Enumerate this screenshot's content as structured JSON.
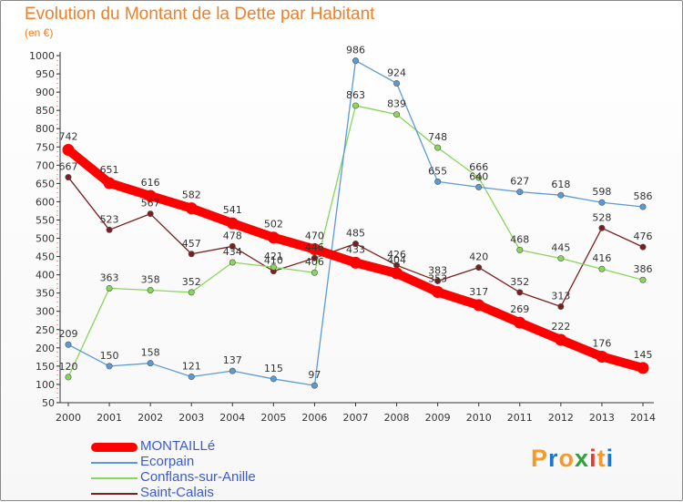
{
  "header": {
    "title": "Evolution du Montant de la Dette par Habitant",
    "unit": "(en €)"
  },
  "logo": {
    "text": "Proxiti",
    "colors": [
      "#f29a2e",
      "#1d76c9",
      "#f29a2e",
      "#2aa33b",
      "#e53a34",
      "#f29a2e",
      "#1d76c9"
    ]
  },
  "chart_data": {
    "type": "line",
    "title": "Evolution du Montant de la Dette par Habitant",
    "ylabel": "(en €)",
    "xlabel": "",
    "x": [
      "2000",
      "2001",
      "2002",
      "2003",
      "2004",
      "2005",
      "2006",
      "2007",
      "2008",
      "2009",
      "2010",
      "2011",
      "2012",
      "2013",
      "2014"
    ],
    "yticks": [
      50,
      100,
      150,
      200,
      250,
      300,
      350,
      400,
      450,
      500,
      550,
      600,
      650,
      700,
      750,
      800,
      850,
      900,
      950,
      1000
    ],
    "ylim": [
      50,
      1000
    ],
    "grid": false,
    "legend_position": "bottom-left",
    "series": [
      {
        "name": "MONTAILLé",
        "color": "#ff0000",
        "values": [
          742,
          651,
          616,
          582,
          541,
          502,
          470,
          433,
          404,
          353,
          317,
          269,
          222,
          176,
          145
        ]
      },
      {
        "name": "Ecorpain",
        "color": "#5b9bd5",
        "values": [
          209,
          150,
          158,
          121,
          137,
          115,
          97,
          986,
          924,
          655,
          640,
          627,
          618,
          598,
          586
        ]
      },
      {
        "name": "Conflans-sur-Anille",
        "color": "#88d65a",
        "values": [
          120,
          363,
          358,
          352,
          434,
          421,
          406,
          863,
          839,
          748,
          666,
          468,
          445,
          416,
          386
        ]
      },
      {
        "name": "Saint-Calais",
        "color": "#7a1f1f",
        "values": [
          667,
          523,
          567,
          457,
          478,
          410,
          446,
          485,
          426,
          383,
          420,
          352,
          313,
          528,
          476
        ]
      }
    ]
  }
}
